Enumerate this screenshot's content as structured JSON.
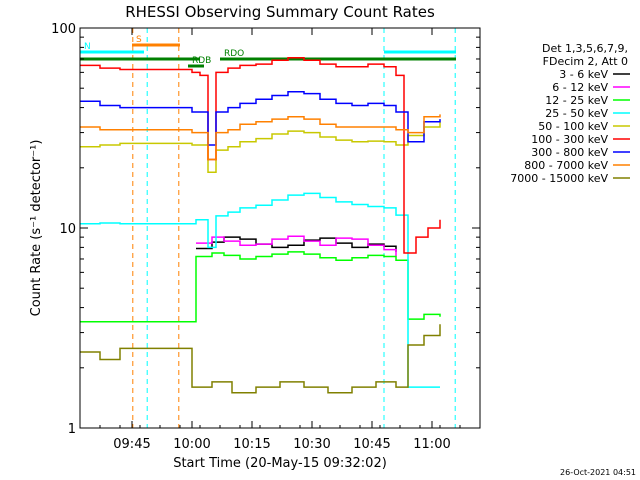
{
  "chart_data": {
    "type": "line",
    "title": "RHESSI Observing Summary Count Rates",
    "xlabel": "Start Time (20-May-15 09:32:02)",
    "ylabel": "Count Rate (s⁻¹ detector⁻¹)",
    "yscale": "log",
    "ylim": [
      1,
      100
    ],
    "xlim": [
      0,
      100
    ],
    "x_units": "minutes after 09:32:02",
    "grid": false,
    "legend_position": "right",
    "x_ticks": [
      {
        "label": "09:45",
        "x": 13
      },
      {
        "label": "10:00",
        "x": 28
      },
      {
        "label": "10:15",
        "x": 43
      },
      {
        "label": "10:30",
        "x": 58
      },
      {
        "label": "10:45",
        "x": 73
      },
      {
        "label": "11:00",
        "x": 88
      }
    ],
    "y_ticks": [
      {
        "label": "1",
        "value": 1
      },
      {
        "label": "10",
        "value": 10
      },
      {
        "label": "100",
        "value": 100
      }
    ],
    "legend_header": [
      "Det 1,3,5,6,7,9,",
      "FDecim 2, Att 0"
    ],
    "series": [
      {
        "name": "3 - 6 keV",
        "color": "#000000",
        "x": [
          29,
          33,
          36,
          40,
          44,
          48,
          52,
          56,
          60,
          64,
          68,
          72,
          76,
          79
        ],
        "y": [
          7.9,
          8.5,
          9.0,
          8.8,
          8.3,
          8.0,
          8.2,
          8.7,
          8.9,
          8.4,
          8.0,
          8.3,
          8.1,
          7.6
        ]
      },
      {
        "name": "6 - 12 keV",
        "color": "#ff00ff",
        "x": [
          29,
          33,
          36,
          40,
          44,
          48,
          52,
          56,
          60,
          64,
          68,
          72,
          76,
          79
        ],
        "y": [
          8.4,
          9.0,
          8.6,
          8.2,
          8.3,
          8.8,
          9.1,
          8.6,
          8.2,
          8.9,
          8.8,
          8.2,
          7.8,
          7.2
        ]
      },
      {
        "name": "12 - 25 keV",
        "color": "#00ff00",
        "x": [
          0,
          5,
          10,
          29,
          33,
          36,
          40,
          44,
          48,
          52,
          56,
          60,
          64,
          68,
          72,
          76,
          79,
          82,
          86,
          90
        ],
        "y": [
          3.4,
          3.4,
          3.4,
          7.2,
          7.5,
          7.3,
          7.0,
          7.2,
          7.4,
          7.6,
          7.4,
          7.1,
          6.9,
          7.1,
          7.3,
          7.2,
          6.9,
          3.5,
          3.7,
          3.6
        ]
      },
      {
        "name": "25 - 50 keV",
        "color": "#00ffff",
        "x": [
          0,
          5,
          10,
          29,
          32,
          34,
          37,
          40,
          44,
          48,
          52,
          56,
          60,
          64,
          68,
          72,
          76,
          79,
          82,
          86,
          90
        ],
        "y": [
          10.5,
          10.6,
          10.5,
          11.0,
          8.0,
          11.5,
          12.0,
          12.6,
          13.0,
          13.8,
          14.6,
          14.9,
          14.2,
          13.5,
          13.1,
          12.8,
          12.6,
          11.6,
          1.6,
          1.6,
          1.6
        ]
      },
      {
        "name": "50 - 100 keV",
        "color": "#c8c800",
        "x": [
          0,
          5,
          10,
          28,
          32,
          34,
          37,
          40,
          44,
          48,
          52,
          56,
          60,
          64,
          68,
          72,
          76,
          79,
          82,
          86,
          90
        ],
        "y": [
          25.5,
          26.0,
          26.5,
          26.0,
          19.0,
          24.5,
          25.5,
          27.0,
          28.0,
          29.5,
          30.5,
          30.0,
          28.5,
          27.5,
          27.0,
          27.2,
          27.0,
          26.0,
          29.0,
          32.0,
          34.0
        ]
      },
      {
        "name": "100 - 300 keV",
        "color": "#ff0000",
        "x": [
          0,
          5,
          10,
          28,
          30,
          32,
          34,
          37,
          40,
          44,
          48,
          52,
          56,
          60,
          64,
          68,
          72,
          76,
          79,
          81,
          84,
          87,
          90
        ],
        "y": [
          65,
          63,
          62,
          60,
          58,
          22,
          60,
          63,
          65,
          66,
          69,
          71,
          69,
          66,
          64,
          64,
          66,
          64,
          58,
          7.5,
          9.0,
          10.0,
          11.0
        ]
      },
      {
        "name": "300 - 800 keV",
        "color": "#0000ff",
        "x": [
          0,
          5,
          10,
          28,
          32,
          34,
          37,
          40,
          44,
          48,
          52,
          56,
          60,
          64,
          68,
          72,
          76,
          79,
          82,
          86,
          90
        ],
        "y": [
          43,
          41,
          40,
          38,
          26,
          38,
          40,
          42,
          44,
          46,
          48,
          47,
          44,
          42,
          41,
          42,
          41,
          38,
          27,
          34,
          35
        ]
      },
      {
        "name": "800 - 7000 keV",
        "color": "#ff8000",
        "x": [
          0,
          5,
          10,
          28,
          32,
          34,
          37,
          40,
          44,
          48,
          52,
          56,
          60,
          64,
          68,
          72,
          76,
          79,
          82,
          86,
          90
        ],
        "y": [
          32,
          31,
          31,
          30,
          22,
          30,
          31,
          33,
          34,
          35,
          36,
          35,
          33,
          32,
          32,
          32,
          32,
          31,
          30,
          36,
          37
        ]
      },
      {
        "name": "7000 - 15000 keV",
        "color": "#808000",
        "x": [
          0,
          5,
          10,
          28,
          33,
          38,
          44,
          50,
          56,
          62,
          68,
          74,
          79,
          82,
          86,
          90
        ],
        "y": [
          2.4,
          2.2,
          2.5,
          1.6,
          1.7,
          1.5,
          1.6,
          1.7,
          1.6,
          1.5,
          1.6,
          1.7,
          1.6,
          2.6,
          2.9,
          3.3
        ]
      }
    ],
    "flag_bars": [
      {
        "label": "S",
        "color": "#ff8000",
        "x0": 13,
        "x1": 25,
        "level": 1
      },
      {
        "label": "N",
        "color": "#00ffff",
        "x0": 0,
        "x1": 16,
        "level": 2
      },
      {
        "label": "",
        "color": "#00ffff",
        "x0": 76,
        "x1": 94,
        "level": 2
      },
      {
        "label": "RDO",
        "color": "#008000",
        "x0": 35,
        "x1": 80,
        "level": 3
      },
      {
        "label": "",
        "color": "#008000",
        "x0": 0,
        "x1": 30,
        "level": 3
      },
      {
        "label": "",
        "color": "#008000",
        "x0": 80,
        "x1": 94,
        "level": 3
      },
      {
        "label": "RDB",
        "color": "#008000",
        "x0": 27,
        "x1": 31,
        "level": 4
      }
    ],
    "vlines": [
      {
        "x": 13.2,
        "color": "#ff8000"
      },
      {
        "x": 16.8,
        "color": "#00ffff"
      },
      {
        "x": 24.7,
        "color": "#ff8000"
      },
      {
        "x": 76.0,
        "color": "#00ffff"
      },
      {
        "x": 93.8,
        "color": "#00ffff"
      }
    ]
  },
  "footer": {
    "timestamp": "26-Oct-2021 04:51"
  }
}
